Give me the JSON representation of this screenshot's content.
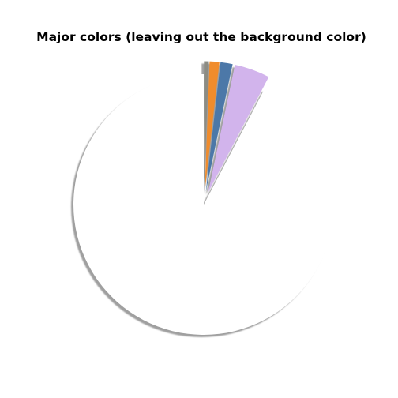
{
  "chart_data": {
    "type": "pie",
    "title": "Major colors (leaving out the background color)",
    "start_angle_deg": 90,
    "direction": "clockwise",
    "shadow": true,
    "legend": "none",
    "slices": [
      {
        "value": 0.6,
        "color": "#8c8c84",
        "explode": 0.1
      },
      {
        "value": 1.2,
        "color": "#f08c2c",
        "explode": 0.1
      },
      {
        "value": 1.5,
        "color": "#4c78a8",
        "explode": 0.1
      },
      {
        "value": 4.4,
        "color": "#d2b4ec",
        "explode": 0.1
      },
      {
        "value": 92.3,
        "color": "#ffffff",
        "explode": 0.0
      }
    ]
  }
}
